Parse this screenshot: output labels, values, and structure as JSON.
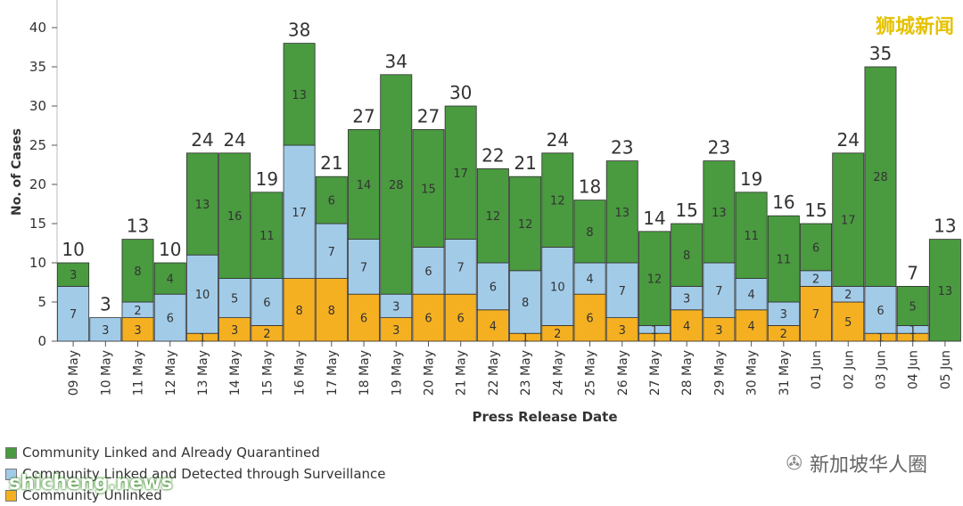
{
  "chart_data": {
    "type": "bar",
    "stacked": true,
    "xlabel": "Press Release Date",
    "ylabel": "No. of Cases",
    "ylim": [
      0,
      43
    ],
    "yticks": [
      0,
      5,
      10,
      15,
      20,
      25,
      30,
      35,
      40
    ],
    "grid": false,
    "legend_position": "bottom-left",
    "categories": [
      "09 May",
      "10 May",
      "11 May",
      "12 May",
      "13 May",
      "14 May",
      "15 May",
      "16 May",
      "17 May",
      "18 May",
      "19 May",
      "20 May",
      "21 May",
      "22 May",
      "23 May",
      "24 May",
      "25 May",
      "26 May",
      "27 May",
      "28 May",
      "29 May",
      "30 May",
      "31 May",
      "01 Jun",
      "02 Jun",
      "03 Jun",
      "04 Jun",
      "05 Jun"
    ],
    "totals": [
      10,
      3,
      13,
      10,
      24,
      24,
      19,
      38,
      21,
      27,
      34,
      27,
      30,
      22,
      21,
      24,
      18,
      23,
      14,
      15,
      23,
      19,
      16,
      15,
      24,
      35,
      7,
      13
    ],
    "series": [
      {
        "name": "Community Unlinked",
        "color": "#f5b021",
        "values": [
          0,
          0,
          3,
          0,
          1,
          3,
          2,
          8,
          8,
          6,
          3,
          6,
          6,
          4,
          1,
          2,
          6,
          3,
          1,
          4,
          3,
          4,
          2,
          7,
          5,
          1,
          1,
          0
        ]
      },
      {
        "name": "Community Linked and Detected through Surveillance",
        "color": "#a2cbe8",
        "values": [
          7,
          3,
          2,
          6,
          10,
          5,
          6,
          17,
          7,
          7,
          3,
          6,
          7,
          6,
          8,
          10,
          4,
          7,
          1,
          3,
          7,
          4,
          3,
          2,
          2,
          6,
          1,
          0
        ]
      },
      {
        "name": "Community Linked and Already Quarantined",
        "color": "#4a9a40",
        "values": [
          3,
          0,
          8,
          4,
          13,
          16,
          11,
          13,
          6,
          14,
          28,
          15,
          17,
          12,
          12,
          12,
          8,
          13,
          12,
          8,
          13,
          11,
          11,
          6,
          17,
          28,
          5,
          13
        ]
      }
    ]
  },
  "legend": [
    {
      "label": "Community Linked and Already Quarantined",
      "color": "#4a9a40"
    },
    {
      "label": "Community Linked and Detected through Surveillance",
      "color": "#a2cbe8"
    },
    {
      "label": "Community Unlinked",
      "color": "#f5b021"
    }
  ],
  "watermarks": {
    "corner": "狮城新闻",
    "wechat": "新加坡华人圈",
    "site": "shicheng.news"
  }
}
